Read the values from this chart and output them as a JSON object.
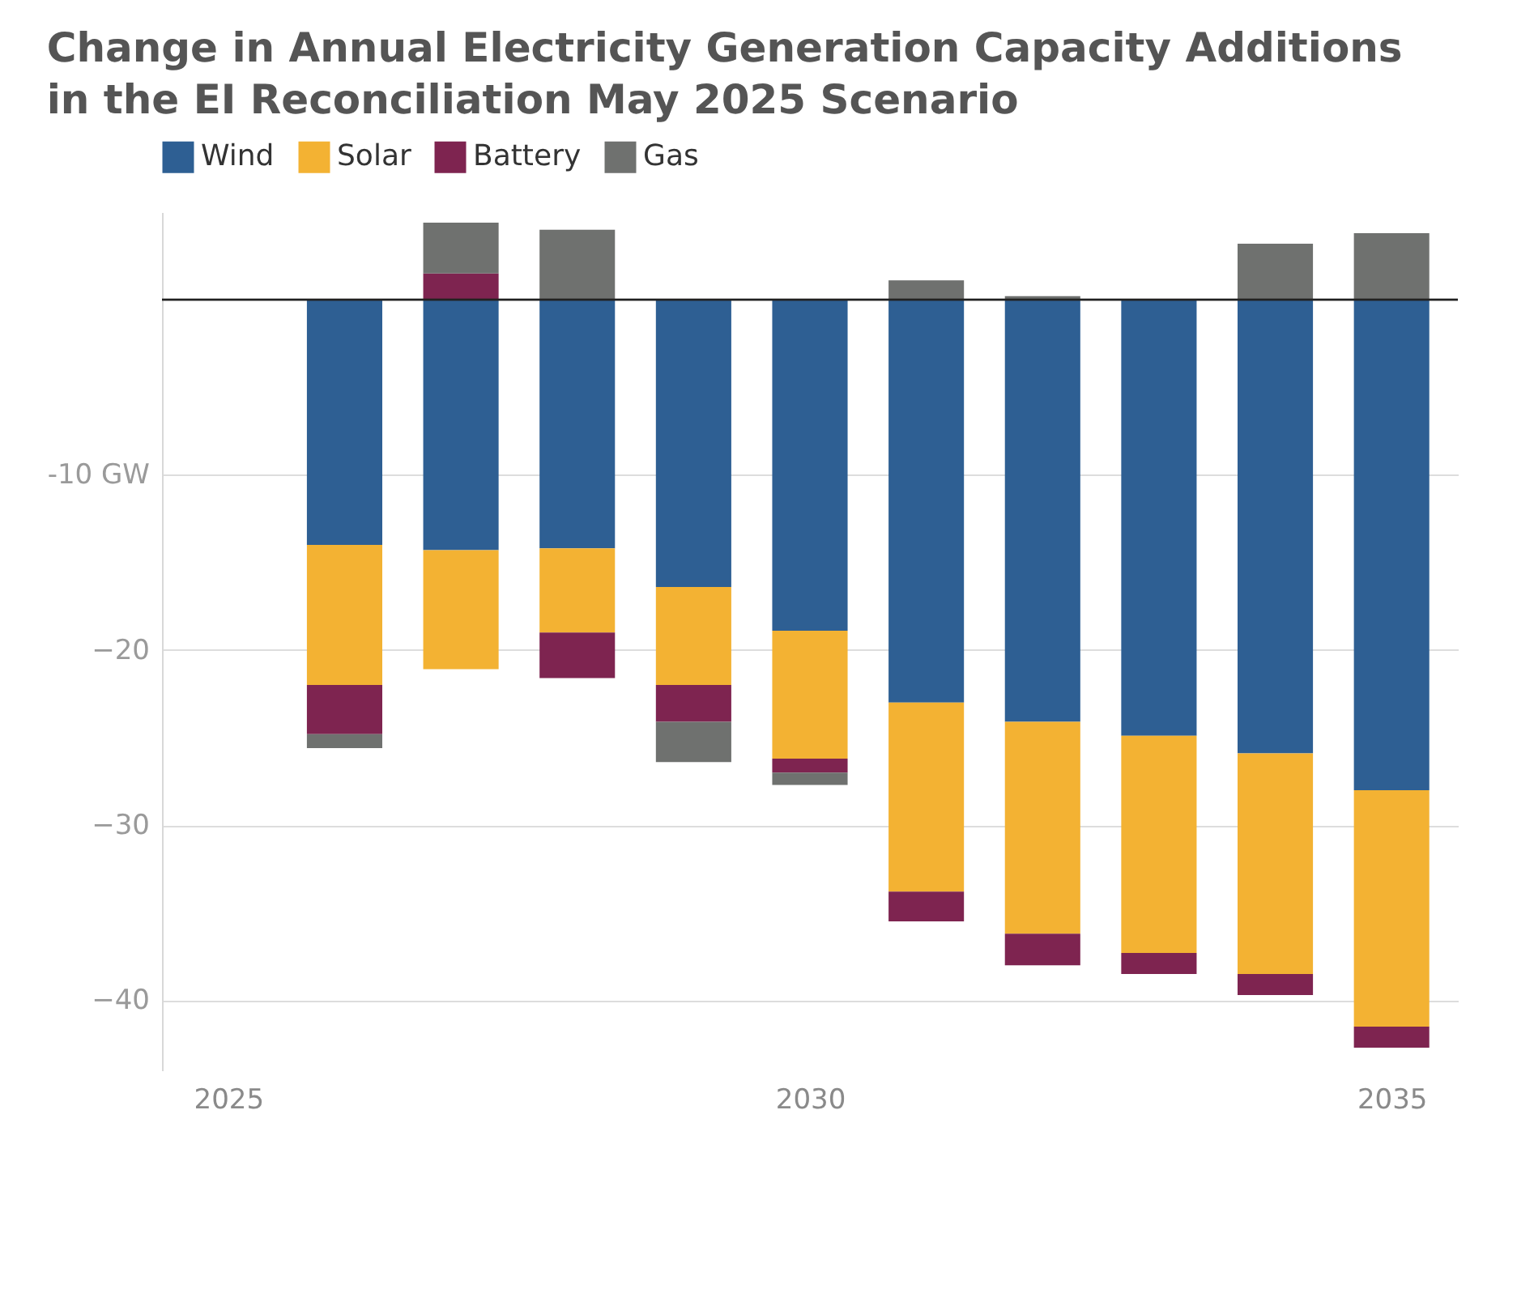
{
  "chart_data": {
    "type": "bar",
    "title": "Change in Annual Electricity Generation Capacity Additions\nin the EI Reconciliation May 2025 Scenario",
    "stacked": true,
    "x": [
      2026,
      2027,
      2028,
      2029,
      2030,
      2031,
      2032,
      2033,
      2034,
      2035
    ],
    "xlim": [
      2024.5,
      2035.5
    ],
    "xticks": [
      2025,
      2030,
      2035
    ],
    "ylim": [
      -44,
      5
    ],
    "yticks": [
      {
        "value": -10,
        "label": "-10 GW"
      },
      -20,
      -30,
      -40
    ],
    "series": [
      {
        "name": "Wind",
        "color": "#2e5f93",
        "values": [
          -14.0,
          -14.3,
          -14.2,
          -16.4,
          -18.9,
          -23.0,
          -24.1,
          -24.9,
          -25.9,
          -28.0
        ]
      },
      {
        "name": "Solar",
        "color": "#f3b233",
        "values": [
          -8.0,
          -6.8,
          -4.8,
          -5.6,
          -7.3,
          -10.8,
          -12.1,
          -12.4,
          -12.6,
          -13.5
        ]
      },
      {
        "name": "Battery",
        "color": "#7e2450",
        "values": [
          -2.8,
          1.5,
          -2.6,
          -2.1,
          -0.8,
          -1.7,
          -1.8,
          -1.2,
          -1.2,
          -1.2
        ]
      },
      {
        "name": "Gas",
        "color": "#6f716f",
        "values": [
          -0.8,
          2.9,
          4.0,
          -2.3,
          -0.7,
          1.1,
          0.2,
          0,
          3.2,
          3.8
        ]
      }
    ],
    "ref_lines": [
      {
        "axis": "y",
        "value": 0,
        "color": "#222222"
      }
    ],
    "grid": "y",
    "legend": "top left"
  }
}
